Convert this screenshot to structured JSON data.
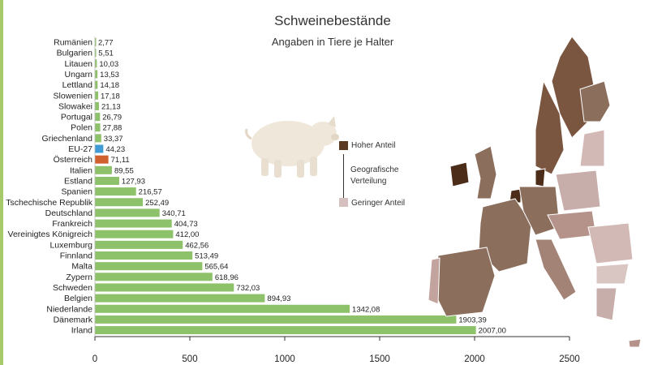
{
  "chart_data": {
    "type": "bar",
    "orientation": "horizontal",
    "title": "Schweinebestände",
    "subtitle": "Angaben in Tiere je Halter",
    "categories": [
      "Rumänien",
      "Bulgarien",
      "Litauen",
      "Ungarn",
      "Lettland",
      "Slowenien",
      "Slowakei",
      "Portugal",
      "Polen",
      "Griechenland",
      "EU-27",
      "Österreich",
      "Italien",
      "Estland",
      "Spanien",
      "Tschechische Republik",
      "Deutschland",
      "Frankreich",
      "Vereinigtes Königreich",
      "Luxemburg",
      "Finnland",
      "Malta",
      "Zypern",
      "Schweden",
      "Belgien",
      "Niederlande",
      "Dänemark",
      "Irland"
    ],
    "values": [
      2.77,
      5.51,
      10.03,
      13.53,
      14.18,
      17.18,
      21.13,
      26.79,
      27.88,
      33.37,
      44.23,
      71.11,
      89.55,
      127.93,
      216.57,
      252.49,
      340.71,
      404.73,
      412.0,
      462.56,
      513.49,
      565.64,
      618.96,
      732.03,
      894.93,
      1342.08,
      1903.39,
      2007.0
    ],
    "value_labels": [
      "2,77",
      "5,51",
      "10,03",
      "13,53",
      "14,18",
      "17,18",
      "21,13",
      "26,79",
      "27,88",
      "33,37",
      "44,23",
      "71,11",
      "89,55",
      "127,93",
      "216,57",
      "252,49",
      "340,71",
      "404,73",
      "412,00",
      "462,56",
      "513,49",
      "565,64",
      "618,96",
      "732,03",
      "894,93",
      "1342,08",
      "1903,39",
      "2007,00"
    ],
    "highlight": {
      "EU-27": "#3f9bd6",
      "Österreich": "#d0612f"
    },
    "bar_color": "#8dc16a",
    "xlim": [
      0,
      2500
    ],
    "xticks": [
      "0",
      "500",
      "1000",
      "1500",
      "2000",
      "2500"
    ],
    "xtick_values": [
      0,
      500,
      1000,
      1500,
      2000,
      2500
    ],
    "grid": false
  },
  "legend": {
    "high_label": "Hoher Anteil",
    "high_color": "#5a3a22",
    "middle_label_line1": "Geografische",
    "middle_label_line2": "Verteilung",
    "low_label": "Geringer Anteil",
    "low_color": "#d6bfbf"
  }
}
